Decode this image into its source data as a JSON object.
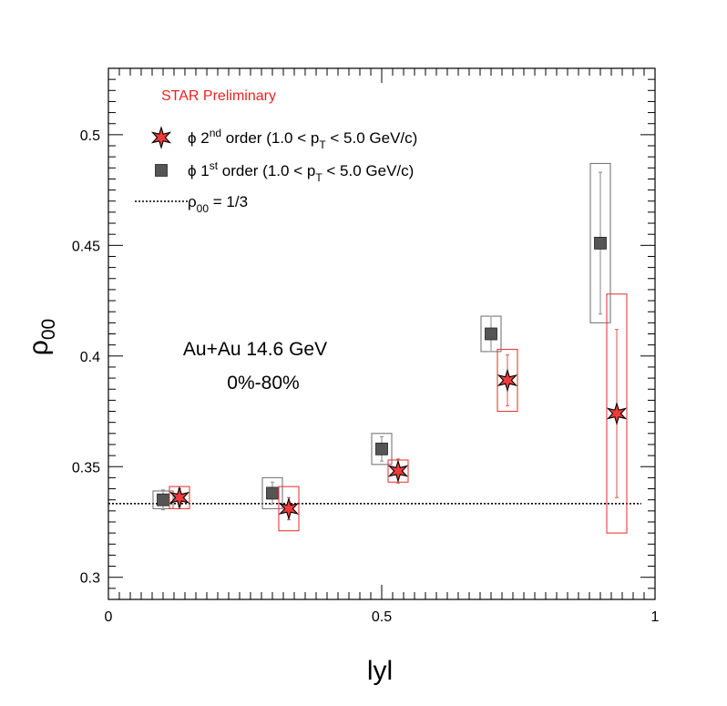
{
  "chart_data": {
    "type": "scatter",
    "title": "",
    "xlabel": "lyl",
    "ylabel": "ρ",
    "ylabel_sub": "00",
    "xlim": [
      0,
      1
    ],
    "ylim": [
      0.29,
      0.53
    ],
    "grid": false,
    "legend_position": "top-left",
    "x_ticks": [
      {
        "value": 0,
        "label": "0"
      },
      {
        "value": 0.5,
        "label": "0.5"
      },
      {
        "value": 1,
        "label": "1"
      }
    ],
    "y_ticks": [
      {
        "value": 0.3,
        "label": "0.3"
      },
      {
        "value": 0.35,
        "label": "0.35"
      },
      {
        "value": 0.4,
        "label": "0.4"
      },
      {
        "value": 0.45,
        "label": "0.45"
      },
      {
        "value": 0.5,
        "label": "0.5"
      }
    ],
    "preliminary_label": "STAR Preliminary",
    "annotation_line1": "Au+Au 14.6 GeV",
    "annotation_line2": "0%-80%",
    "legend": [
      {
        "id": "second",
        "marker": "star",
        "text_a": "ϕ 2",
        "sup": "nd",
        "text_b": " order (1.0 < p",
        "sub": "T",
        "text_c": " < 5.0 GeV/c)"
      },
      {
        "id": "first",
        "marker": "square",
        "text_a": "ϕ 1",
        "sup": "st",
        "text_b": " order (1.0 < p",
        "sub": "T",
        "text_c": " < 5.0 GeV/c)"
      },
      {
        "id": "ref",
        "marker": "dotted-line",
        "text_a": "ρ",
        "sub": "00",
        "text_c": " = 1/3"
      }
    ],
    "reference_line": {
      "y": 0.3333
    },
    "series": [
      {
        "id": "first",
        "marker": "square",
        "color": "#555555",
        "stat_color": "#999999",
        "sys_color": "#777777",
        "points": [
          {
            "x": 0.1,
            "y": 0.335,
            "stat": 0.0045,
            "sys": 0.004
          },
          {
            "x": 0.3,
            "y": 0.338,
            "stat": 0.005,
            "sys": 0.007
          },
          {
            "x": 0.5,
            "y": 0.358,
            "stat": 0.0055,
            "sys": 0.007
          },
          {
            "x": 0.7,
            "y": 0.41,
            "stat": 0.008,
            "sys": 0.008
          },
          {
            "x": 0.9,
            "y": 0.451,
            "stat": 0.032,
            "sys": 0.036
          }
        ]
      },
      {
        "id": "second",
        "marker": "star",
        "color": "#ee3b3b",
        "stat_color": "#e07070",
        "sys_color": "#ee3b3b",
        "points": [
          {
            "x": 0.13,
            "y": 0.336,
            "stat": 0.004,
            "sys": 0.005
          },
          {
            "x": 0.33,
            "y": 0.331,
            "stat": 0.005,
            "sys": 0.01
          },
          {
            "x": 0.53,
            "y": 0.348,
            "stat": 0.0055,
            "sys": 0.005
          },
          {
            "x": 0.73,
            "y": 0.389,
            "stat": 0.0115,
            "sys": 0.014
          },
          {
            "x": 0.93,
            "y": 0.374,
            "stat": 0.038,
            "sys": 0.054
          }
        ]
      }
    ]
  }
}
